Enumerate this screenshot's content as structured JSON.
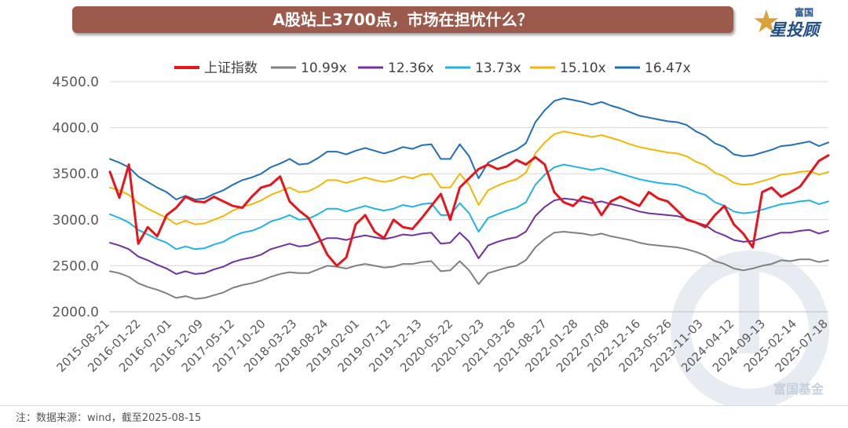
{
  "title": "A股站上3700点，市场在担忧什么？",
  "logo": {
    "top": "富国",
    "main": "星投顾",
    "icon": "star-icon"
  },
  "watermark": "富国基金",
  "note": "注：数据来源：wind，截至2025-08-15",
  "chart_data": {
    "type": "line",
    "ylim": [
      2000,
      4500
    ],
    "yticks": [
      "2000.0",
      "2500.0",
      "3000.0",
      "3500.0",
      "4000.0",
      "4500.0"
    ],
    "xticks": [
      "2015-08-21",
      "2016-01-22",
      "2016-07-01",
      "2016-12-09",
      "2017-05-12",
      "2017-10-20",
      "2018-03-23",
      "2018-08-24",
      "2019-02-01",
      "2019-07-12",
      "2019-12-13",
      "2020-05-22",
      "2020-10-23",
      "2021-03-26",
      "2021-08-27",
      "2022-01-28",
      "2022-07-08",
      "2022-12-16",
      "2023-05-26",
      "2023-11-03",
      "2024-04-12",
      "2024-09-13",
      "2025-02-14",
      "2025-07-18"
    ],
    "legend_position": "top",
    "series": [
      {
        "name": "上证指数",
        "color": "#e8141b",
        "width": 3,
        "values": [
          3520,
          3240,
          3600,
          2740,
          2920,
          2820,
          3050,
          3130,
          3250,
          3200,
          3190,
          3250,
          3200,
          3150,
          3130,
          3250,
          3350,
          3380,
          3470,
          3200,
          3100,
          3020,
          2830,
          2620,
          2500,
          2590,
          2950,
          3050,
          2870,
          2800,
          3000,
          2920,
          2900,
          3020,
          3150,
          3280,
          3000,
          3350,
          3450,
          3550,
          3600,
          3550,
          3580,
          3650,
          3600,
          3680,
          3600,
          3300,
          3190,
          3150,
          3250,
          3220,
          3050,
          3200,
          3250,
          3200,
          3150,
          3300,
          3230,
          3200,
          3100,
          3000,
          2970,
          2920,
          3050,
          3150,
          2950,
          2850,
          2700,
          3300,
          3350,
          3250,
          3300,
          3360,
          3500,
          3640,
          3700
        ]
      },
      {
        "name": "10.99x",
        "color": "#808080",
        "width": 2,
        "values": [
          2440,
          2420,
          2380,
          2310,
          2270,
          2240,
          2200,
          2150,
          2170,
          2140,
          2150,
          2180,
          2210,
          2260,
          2290,
          2310,
          2340,
          2380,
          2410,
          2430,
          2420,
          2420,
          2460,
          2500,
          2490,
          2470,
          2500,
          2520,
          2500,
          2480,
          2490,
          2520,
          2520,
          2540,
          2550,
          2440,
          2450,
          2550,
          2450,
          2300,
          2420,
          2450,
          2480,
          2500,
          2560,
          2700,
          2790,
          2860,
          2870,
          2860,
          2850,
          2830,
          2850,
          2820,
          2800,
          2780,
          2750,
          2730,
          2720,
          2710,
          2700,
          2680,
          2650,
          2610,
          2550,
          2520,
          2470,
          2450,
          2470,
          2500,
          2520,
          2560,
          2550,
          2570,
          2570,
          2540,
          2560
        ]
      },
      {
        "name": "12.36x",
        "color": "#7030a0",
        "width": 2,
        "values": [
          2750,
          2720,
          2680,
          2600,
          2560,
          2510,
          2470,
          2410,
          2440,
          2410,
          2420,
          2460,
          2490,
          2540,
          2570,
          2590,
          2620,
          2680,
          2710,
          2740,
          2710,
          2720,
          2760,
          2800,
          2800,
          2780,
          2810,
          2830,
          2810,
          2790,
          2810,
          2840,
          2830,
          2850,
          2860,
          2740,
          2750,
          2860,
          2760,
          2580,
          2720,
          2760,
          2790,
          2810,
          2870,
          3040,
          3140,
          3210,
          3230,
          3220,
          3200,
          3180,
          3200,
          3170,
          3150,
          3120,
          3090,
          3070,
          3060,
          3050,
          3040,
          3010,
          2970,
          2940,
          2870,
          2830,
          2780,
          2760,
          2770,
          2800,
          2830,
          2860,
          2860,
          2880,
          2890,
          2850,
          2880
        ]
      },
      {
        "name": "13.73x",
        "color": "#1fb3e6",
        "width": 2,
        "values": [
          3060,
          3020,
          2970,
          2890,
          2840,
          2790,
          2750,
          2680,
          2710,
          2680,
          2690,
          2730,
          2760,
          2820,
          2860,
          2880,
          2920,
          2980,
          3010,
          3050,
          3000,
          3010,
          3060,
          3120,
          3120,
          3090,
          3120,
          3150,
          3120,
          3100,
          3120,
          3160,
          3140,
          3170,
          3180,
          3050,
          3050,
          3180,
          3070,
          2870,
          3020,
          3060,
          3100,
          3130,
          3190,
          3380,
          3490,
          3570,
          3600,
          3580,
          3560,
          3540,
          3560,
          3530,
          3500,
          3470,
          3440,
          3420,
          3400,
          3390,
          3380,
          3350,
          3300,
          3270,
          3190,
          3150,
          3090,
          3070,
          3080,
          3110,
          3140,
          3170,
          3180,
          3200,
          3210,
          3170,
          3200
        ]
      },
      {
        "name": "15.10x",
        "color": "#f2b705",
        "width": 2,
        "values": [
          3350,
          3320,
          3270,
          3180,
          3120,
          3070,
          3020,
          2950,
          2990,
          2950,
          2960,
          3000,
          3040,
          3100,
          3140,
          3170,
          3210,
          3270,
          3310,
          3350,
          3300,
          3310,
          3360,
          3430,
          3430,
          3400,
          3430,
          3460,
          3430,
          3410,
          3430,
          3470,
          3450,
          3490,
          3500,
          3350,
          3350,
          3500,
          3380,
          3160,
          3320,
          3370,
          3410,
          3440,
          3510,
          3720,
          3840,
          3930,
          3960,
          3940,
          3920,
          3900,
          3920,
          3890,
          3860,
          3820,
          3790,
          3770,
          3750,
          3730,
          3720,
          3690,
          3630,
          3590,
          3510,
          3470,
          3400,
          3380,
          3390,
          3420,
          3450,
          3490,
          3500,
          3520,
          3530,
          3490,
          3520
        ]
      },
      {
        "name": "16.47x",
        "color": "#1f6fb8",
        "width": 2,
        "values": [
          3660,
          3620,
          3570,
          3470,
          3410,
          3350,
          3300,
          3220,
          3260,
          3220,
          3230,
          3280,
          3320,
          3380,
          3430,
          3460,
          3500,
          3570,
          3610,
          3660,
          3600,
          3610,
          3670,
          3740,
          3740,
          3710,
          3750,
          3780,
          3750,
          3720,
          3750,
          3790,
          3770,
          3810,
          3820,
          3660,
          3660,
          3820,
          3690,
          3450,
          3620,
          3670,
          3720,
          3760,
          3830,
          4060,
          4190,
          4290,
          4320,
          4300,
          4280,
          4250,
          4280,
          4240,
          4210,
          4170,
          4130,
          4110,
          4090,
          4070,
          4060,
          4030,
          3960,
          3910,
          3830,
          3790,
          3710,
          3690,
          3700,
          3730,
          3760,
          3800,
          3810,
          3830,
          3850,
          3800,
          3840
        ]
      }
    ]
  }
}
